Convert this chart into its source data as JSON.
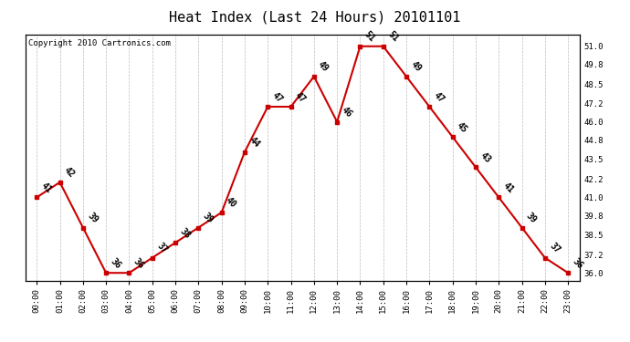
{
  "title": "Heat Index (Last 24 Hours) 20101101",
  "copyright": "Copyright 2010 Cartronics.com",
  "hours": [
    "00:00",
    "01:00",
    "02:00",
    "03:00",
    "04:00",
    "05:00",
    "06:00",
    "07:00",
    "08:00",
    "09:00",
    "10:00",
    "11:00",
    "12:00",
    "13:00",
    "14:00",
    "15:00",
    "16:00",
    "17:00",
    "18:00",
    "19:00",
    "20:00",
    "21:00",
    "22:00",
    "23:00"
  ],
  "values": [
    41,
    42,
    39,
    36,
    36,
    37,
    38,
    39,
    40,
    44,
    47,
    47,
    49,
    46,
    51,
    51,
    49,
    47,
    45,
    43,
    41,
    39,
    37,
    36
  ],
  "ylim_min": 35.5,
  "ylim_max": 51.8,
  "yticks": [
    36.0,
    37.2,
    38.5,
    39.8,
    41.0,
    42.2,
    43.5,
    44.8,
    46.0,
    47.2,
    48.5,
    49.8,
    51.0
  ],
  "line_color": "#cc0000",
  "marker_color": "#cc0000",
  "bg_color": "#ffffff",
  "grid_color": "#bbbbbb",
  "title_fontsize": 11,
  "copyright_fontsize": 6.5,
  "label_fontsize": 7,
  "tick_fontsize": 6.5
}
